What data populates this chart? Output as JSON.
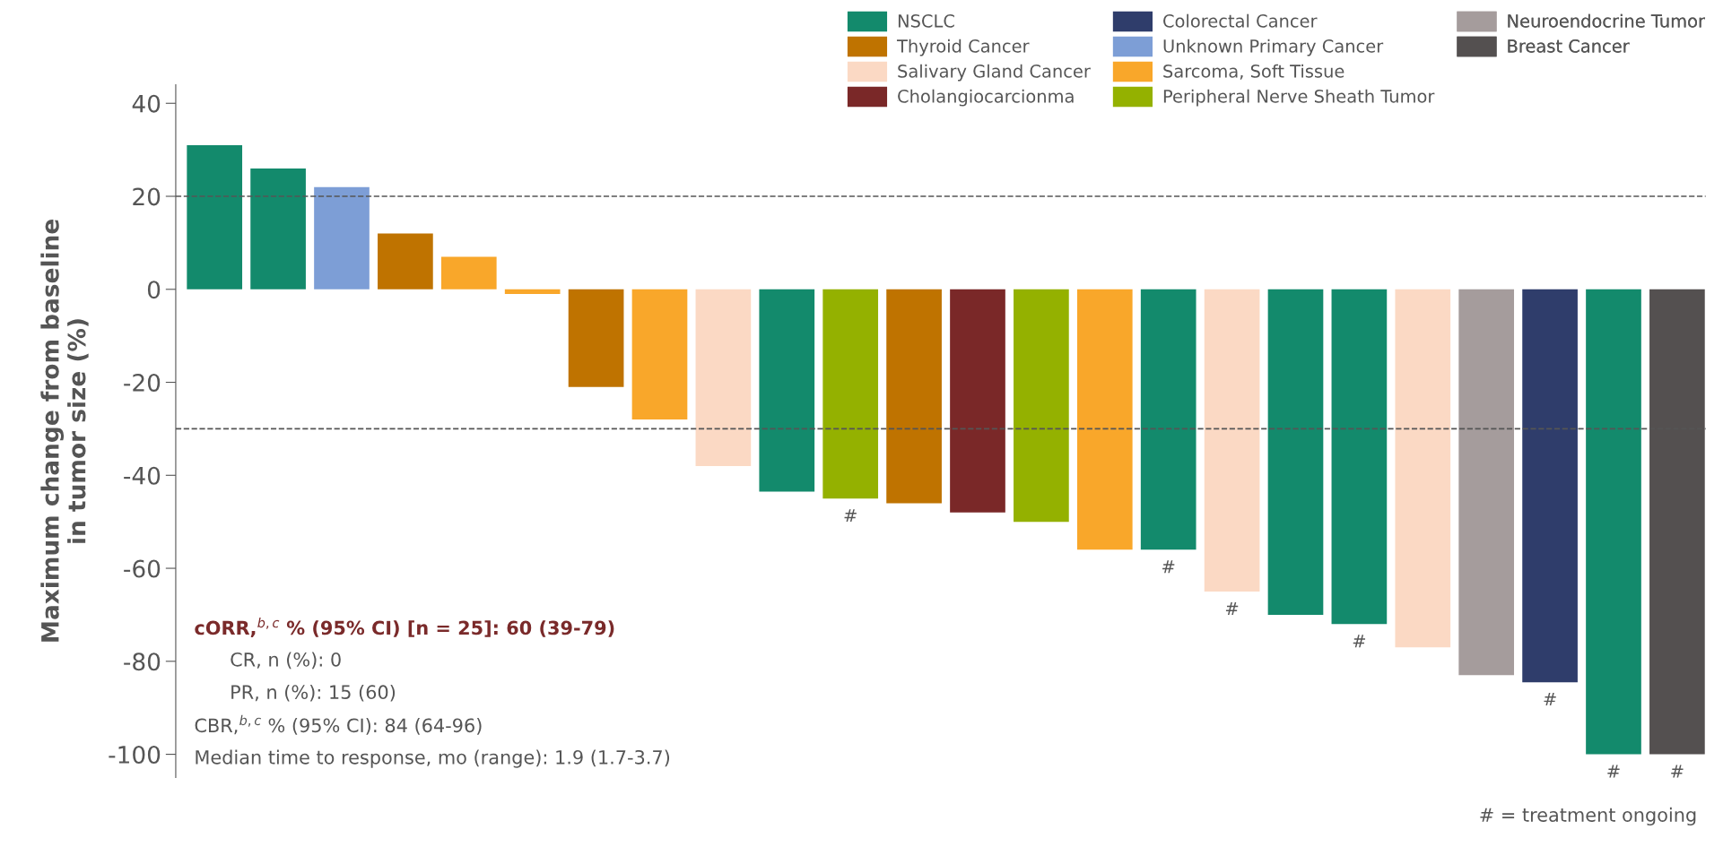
{
  "chart_data": {
    "type": "bar",
    "ylabel": "Maximum change from baseline\nin tumor size (%)",
    "categories": [
      null,
      null,
      null,
      null,
      null,
      null,
      null,
      null,
      null,
      null,
      null,
      null,
      null,
      null,
      null,
      null,
      null,
      null,
      null,
      null,
      null,
      null,
      null,
      null
    ],
    "series": [
      {
        "name": "NSCLC",
        "color": "#138a6c",
        "values": [
          31,
          26,
          null,
          null,
          null,
          null,
          null,
          null,
          null,
          -43.5,
          null,
          null,
          null,
          null,
          null,
          -56,
          null,
          -70,
          -72,
          null,
          null,
          null,
          -100,
          null
        ],
        "value_labels": [
          null,
          null,
          null,
          null,
          null,
          null,
          null,
          null,
          null,
          null,
          null,
          null,
          null,
          null,
          null,
          "#",
          null,
          null,
          "#",
          null,
          null,
          null,
          "#",
          null
        ]
      },
      {
        "name": "Thyroid Cancer",
        "color": "#bf7300",
        "values": [
          null,
          null,
          null,
          12,
          null,
          null,
          -21,
          null,
          null,
          null,
          null,
          -46,
          null,
          null,
          null,
          null,
          null,
          null,
          null,
          null,
          null,
          null,
          null,
          null
        ]
      },
      {
        "name": "Salivary Gland Cancer",
        "color": "#fbd9c4",
        "values": [
          null,
          null,
          null,
          null,
          null,
          null,
          null,
          null,
          -38,
          null,
          null,
          null,
          null,
          null,
          null,
          null,
          -65,
          null,
          null,
          -77,
          null,
          null,
          null,
          null
        ],
        "value_labels": [
          null,
          null,
          null,
          null,
          null,
          null,
          null,
          null,
          null,
          null,
          null,
          null,
          null,
          null,
          null,
          null,
          "#",
          null,
          null,
          null,
          null,
          null,
          null,
          null
        ]
      },
      {
        "name": "Cholangiocarcionma",
        "color": "#7a2828",
        "values": [
          null,
          null,
          null,
          null,
          null,
          null,
          null,
          null,
          null,
          null,
          null,
          null,
          -48,
          null,
          null,
          null,
          null,
          null,
          null,
          null,
          null,
          null,
          null,
          null
        ]
      },
      {
        "name": "Colorectal Cancer",
        "color": "#2f3d6b",
        "values": [
          null,
          null,
          null,
          null,
          null,
          null,
          null,
          null,
          null,
          null,
          null,
          null,
          null,
          null,
          null,
          null,
          null,
          null,
          null,
          null,
          null,
          -84.5,
          null,
          null
        ],
        "value_labels": [
          null,
          null,
          null,
          null,
          null,
          null,
          null,
          null,
          null,
          null,
          null,
          null,
          null,
          null,
          null,
          null,
          null,
          null,
          null,
          null,
          null,
          "#",
          null,
          null
        ]
      },
      {
        "name": "Unknown Primary Cancer",
        "color": "#7d9ed6",
        "values": [
          null,
          null,
          22,
          null,
          null,
          null,
          null,
          null,
          null,
          null,
          null,
          null,
          null,
          null,
          null,
          null,
          null,
          null,
          null,
          null,
          null,
          null,
          null,
          null
        ]
      },
      {
        "name": "Sarcoma, Soft Tissue",
        "color": "#f9a72a",
        "values": [
          null,
          null,
          null,
          null,
          7,
          -1,
          null,
          -28,
          null,
          null,
          null,
          null,
          null,
          null,
          -56,
          null,
          null,
          null,
          null,
          null,
          null,
          null,
          null,
          null
        ]
      },
      {
        "name": "Peripheral Nerve Sheath Tumor",
        "color": "#94b100",
        "values": [
          null,
          null,
          null,
          null,
          null,
          null,
          null,
          null,
          null,
          null,
          -45,
          null,
          null,
          -50,
          null,
          null,
          null,
          null,
          null,
          null,
          null,
          null,
          null,
          null
        ],
        "value_labels": [
          null,
          null,
          null,
          null,
          null,
          null,
          null,
          null,
          null,
          null,
          "#",
          null,
          null,
          null,
          null,
          null,
          null,
          null,
          null,
          null,
          null,
          null,
          null,
          null
        ]
      },
      {
        "name": "Neuroendocrine Tumor",
        "color": "#a59c9c",
        "values": [
          null,
          null,
          null,
          null,
          null,
          null,
          null,
          null,
          null,
          null,
          null,
          null,
          null,
          null,
          null,
          null,
          null,
          null,
          null,
          null,
          -83,
          null,
          null,
          null
        ]
      },
      {
        "name": "Breast Cancer",
        "color": "#545050",
        "values": [
          null,
          null,
          null,
          null,
          null,
          null,
          null,
          null,
          null,
          null,
          null,
          null,
          null,
          null,
          null,
          null,
          null,
          null,
          null,
          null,
          null,
          null,
          null,
          -100
        ],
        "value_labels": [
          null,
          null,
          null,
          null,
          null,
          null,
          null,
          null,
          null,
          null,
          null,
          null,
          null,
          null,
          null,
          null,
          null,
          null,
          null,
          null,
          null,
          null,
          null,
          "#"
        ]
      }
    ],
    "ylim": [
      -105,
      44
    ],
    "yticks": [
      -100,
      -80,
      -60,
      -40,
      -20,
      0,
      20,
      40
    ],
    "ref_lines": [
      {
        "axis": "y",
        "value": 20,
        "color": "#555555",
        "line_style": "dashed"
      },
      {
        "axis": "y",
        "value": -30,
        "color": "#555555",
        "line_style": "dashed"
      }
    ],
    "grid": false,
    "legend": "top right",
    "annotations": [
      "cORR,$^{b,c}$ % (95% CI) [n = 25]: 60 (39-79)",
      "      CR, n (%): 0",
      "      PR, n (%): 15 (60)",
      "CBR,$^{b,c}$ % (95% CI): 84 (64-96)",
      "Median time to response, mo (range): 1.9 (1.7-3.7)",
      "# = treatment ongoing"
    ]
  }
}
